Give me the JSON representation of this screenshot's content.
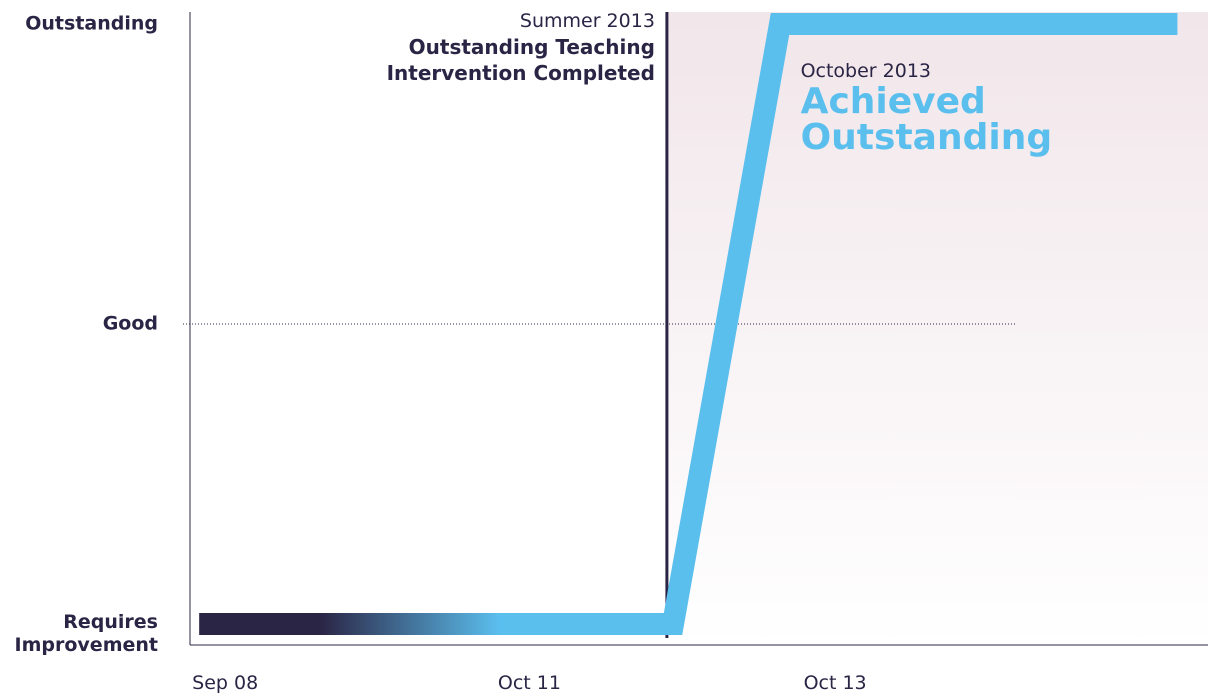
{
  "chart_data": {
    "type": "line",
    "x": [
      0,
      1.55,
      1.9,
      3.2
    ],
    "series": [
      {
        "values": [
          0,
          0,
          2,
          2
        ],
        "color": "#5bbfee",
        "gradient_start": "#2b2545"
      }
    ],
    "xlim": [
      -0.03,
      3.3
    ],
    "xticks": [
      {
        "value": 0,
        "label": "Sep 08"
      },
      {
        "value": 1,
        "label": "Oct 11"
      },
      {
        "value": 2,
        "label": "Oct 13"
      }
    ],
    "ylim": [
      -0.07,
      2.04
    ],
    "yticks": [
      {
        "value": 0,
        "label": "Requires Improvement"
      },
      {
        "value": 1,
        "label": "Good"
      },
      {
        "value": 2,
        "label": "Outstanding"
      }
    ],
    "annotations": [
      {
        "x": 1.53,
        "date": "Summer 2013",
        "text": "Outstanding Teaching Intervention Completed",
        "color": "#2b2545"
      },
      {
        "x": 2.0,
        "date": "October 2013",
        "text": "Achieved Outstanding",
        "color": "#5bbfee"
      }
    ]
  }
}
